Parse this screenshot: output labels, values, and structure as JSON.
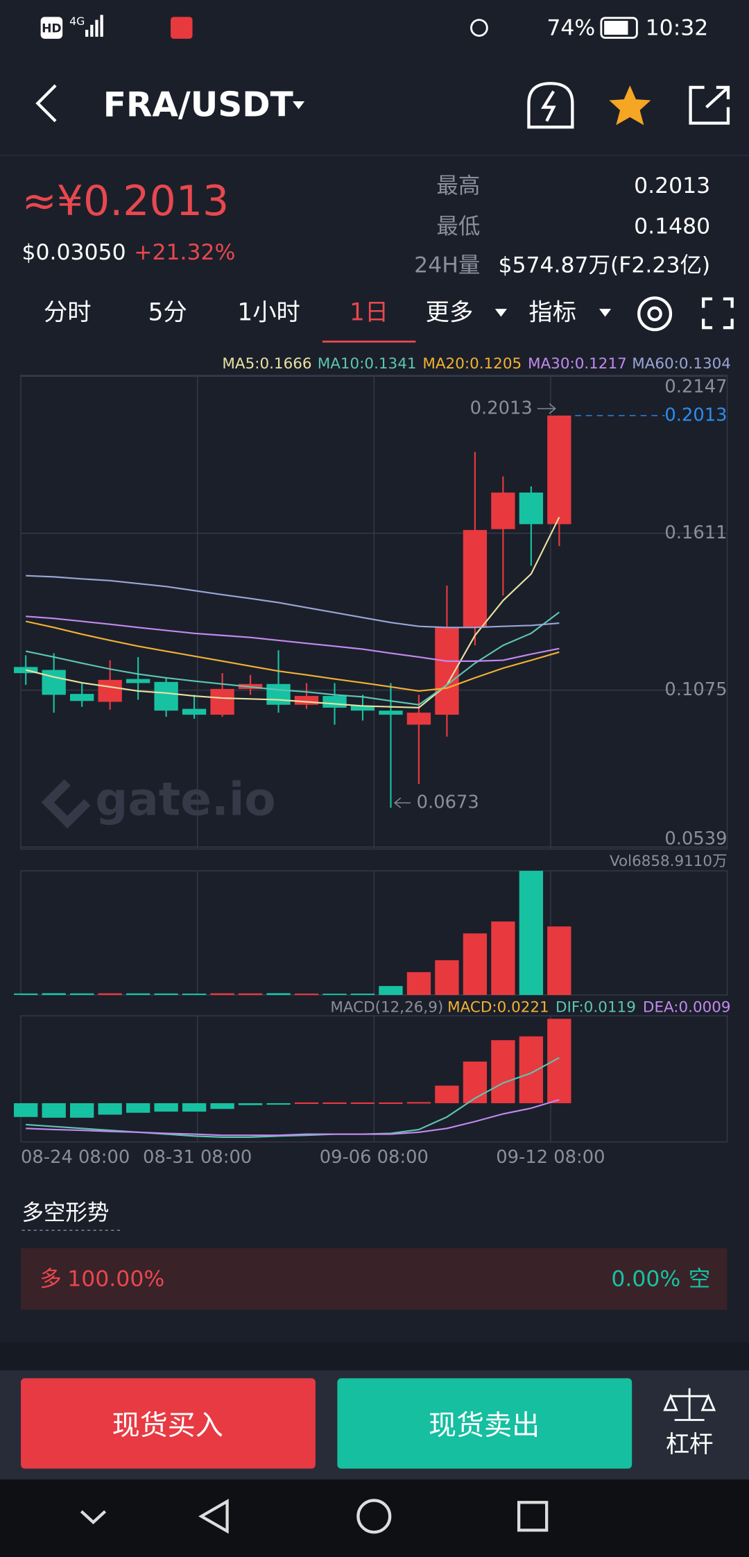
{
  "status_bar": {
    "hd": "HD",
    "network": "4G",
    "battery": "74%",
    "time": "10:32"
  },
  "header": {
    "pair": "FRA/USDT"
  },
  "ticker": {
    "price": "≈¥0.2013",
    "usd": "$0.03050",
    "change": "+21.32%",
    "high_label": "最高",
    "high": "0.2013",
    "low_label": "最低",
    "low": "0.1480",
    "vol_label": "24H量",
    "vol": "$574.87万(F2.23亿)"
  },
  "tabs": {
    "items": [
      "分时",
      "5分",
      "1小时",
      "1日",
      "更多",
      "指标"
    ],
    "active": 3
  },
  "chart": {
    "ylim": [
      0.0539,
      0.2147
    ],
    "yticks": [
      0.2147,
      0.1611,
      0.1075,
      0.0539
    ],
    "up_color": "#e8393f",
    "down_color": "#17c2a2",
    "candles": [
      {
        "open": 0.1154,
        "high": 0.1194,
        "low": 0.1093,
        "close": 0.1133
      },
      {
        "open": 0.1144,
        "high": 0.1201,
        "low": 0.0998,
        "close": 0.1059
      },
      {
        "open": 0.1062,
        "high": 0.1099,
        "low": 0.1018,
        "close": 0.1038
      },
      {
        "open": 0.1035,
        "high": 0.1177,
        "low": 0.1008,
        "close": 0.111
      },
      {
        "open": 0.1113,
        "high": 0.1188,
        "low": 0.1042,
        "close": 0.1099
      },
      {
        "open": 0.1103,
        "high": 0.1116,
        "low": 0.0984,
        "close": 0.1005
      },
      {
        "open": 0.1011,
        "high": 0.1059,
        "low": 0.0977,
        "close": 0.0991
      },
      {
        "open": 0.0991,
        "high": 0.1133,
        "low": 0.0984,
        "close": 0.1079
      },
      {
        "open": 0.1079,
        "high": 0.1127,
        "low": 0.1059,
        "close": 0.1096
      },
      {
        "open": 0.1096,
        "high": 0.1211,
        "low": 0.0998,
        "close": 0.1025
      },
      {
        "open": 0.1025,
        "high": 0.1099,
        "low": 0.1011,
        "close": 0.1055
      },
      {
        "open": 0.1055,
        "high": 0.1099,
        "low": 0.0957,
        "close": 0.1015
      },
      {
        "open": 0.1022,
        "high": 0.1059,
        "low": 0.0971,
        "close": 0.1005
      },
      {
        "open": 0.1005,
        "high": 0.1099,
        "low": 0.0673,
        "close": 0.0991
      },
      {
        "open": 0.0957,
        "high": 0.1059,
        "low": 0.0754,
        "close": 0.0998
      },
      {
        "open": 0.0991,
        "high": 0.1432,
        "low": 0.0916,
        "close": 0.1289
      },
      {
        "open": 0.1289,
        "high": 0.1889,
        "low": 0.1228,
        "close": 0.1622
      },
      {
        "open": 0.1625,
        "high": 0.1805,
        "low": 0.1398,
        "close": 0.175
      },
      {
        "open": 0.175,
        "high": 0.1771,
        "low": 0.15,
        "close": 0.1642
      },
      {
        "open": 0.1642,
        "high": 0.2013,
        "low": 0.1567,
        "close": 0.2013
      }
    ],
    "ma": [
      {
        "label": "MA5:0.1666",
        "color": "#e8e2a2",
        "values": [
          0.1144,
          0.112,
          0.11,
          0.1086,
          0.1072,
          0.1065,
          0.1055,
          0.1048,
          0.1045,
          0.1042,
          0.1035,
          0.1028,
          0.1021,
          0.1018,
          0.1015,
          0.1093,
          0.1262,
          0.1381,
          0.1472,
          0.1666
        ]
      },
      {
        "label": "MA10:0.1341",
        "color": "#5cc6b2",
        "values": [
          0.1208,
          0.1188,
          0.1167,
          0.1147,
          0.113,
          0.1117,
          0.1106,
          0.1096,
          0.1086,
          0.1076,
          0.1069,
          0.1059,
          0.1052,
          0.1038,
          0.1025,
          0.1093,
          0.1167,
          0.1228,
          0.1269,
          0.1341
        ]
      },
      {
        "label": "MA20:0.1205",
        "color": "#f2b233",
        "values": [
          0.131,
          0.1289,
          0.1266,
          0.1245,
          0.1225,
          0.1208,
          0.1191,
          0.1174,
          0.1157,
          0.114,
          0.1127,
          0.1113,
          0.11,
          0.1086,
          0.1072,
          0.1082,
          0.1117,
          0.115,
          0.1177,
          0.1205
        ]
      },
      {
        "label": "MA30:0.1217",
        "color": "#c28af0",
        "values": [
          0.1327,
          0.132,
          0.131,
          0.13,
          0.1289,
          0.1279,
          0.1269,
          0.1262,
          0.1255,
          0.1245,
          0.1235,
          0.1225,
          0.1215,
          0.1201,
          0.1188,
          0.1174,
          0.1174,
          0.1177,
          0.1198,
          0.1217
        ]
      },
      {
        "label": "MA60:0.1304",
        "color": "#9aa6d6",
        "values": [
          0.1466,
          0.1462,
          0.1455,
          0.1449,
          0.1439,
          0.1429,
          0.1415,
          0.1401,
          0.1388,
          0.1374,
          0.1357,
          0.134,
          0.1323,
          0.1306,
          0.1293,
          0.1289,
          0.1289,
          0.1293,
          0.1296,
          0.1304
        ]
      }
    ],
    "high_mark": 0.2013,
    "low_mark": 0.0673,
    "last_price": 0.2013,
    "watermark": "gate.io",
    "x_labels": [
      "08-24 08:00",
      "08-31 08:00",
      "09-06 08:00",
      "09-12 08:00"
    ],
    "volume": {
      "label": "Vol6858.9110万",
      "values": [
        150,
        180,
        160,
        170,
        160,
        150,
        140,
        170,
        160,
        180,
        140,
        130,
        140,
        895,
        2286,
        3479,
        6163,
        7356,
        12425,
        6858.911
      ]
    },
    "macd": {
      "title": "MACD(12,26,9)",
      "macd_label": "MACD:0.0221",
      "dif_label": "DIF:0.0119",
      "dea_label": "DEA:0.0009",
      "histogram": [
        -0.0036,
        -0.0038,
        -0.0038,
        -0.003,
        -0.0025,
        -0.0022,
        -0.0022,
        -0.0015,
        -0.0005,
        -0.0003,
        0.0002,
        0.0002,
        0.0002,
        0.0002,
        0.0003,
        0.0046,
        0.0109,
        0.0165,
        0.0175,
        0.0221
      ],
      "dif": [
        -0.0056,
        -0.0061,
        -0.0066,
        -0.0071,
        -0.0076,
        -0.0081,
        -0.0086,
        -0.0089,
        -0.0089,
        -0.0086,
        -0.0084,
        -0.0081,
        -0.0081,
        -0.0079,
        -0.0069,
        -0.0036,
        0.0013,
        0.0053,
        0.0079,
        0.0119
      ],
      "dea": [
        -0.0066,
        -0.0069,
        -0.0071,
        -0.0074,
        -0.0076,
        -0.0079,
        -0.0081,
        -0.0084,
        -0.0084,
        -0.0084,
        -0.0081,
        -0.0081,
        -0.0081,
        -0.0081,
        -0.0076,
        -0.0066,
        -0.0048,
        -0.0028,
        -0.0013,
        0.0009
      ],
      "dif_color": "#5cc6b2",
      "dea_color": "#c28af0"
    }
  },
  "sentiment": {
    "title": "多空形势",
    "long_label": "多",
    "long": "100.00%",
    "short": "0.00%",
    "short_label": "空"
  },
  "actions": {
    "buy": "现货买入",
    "sell": "现货卖出",
    "margin": "杠杆"
  }
}
